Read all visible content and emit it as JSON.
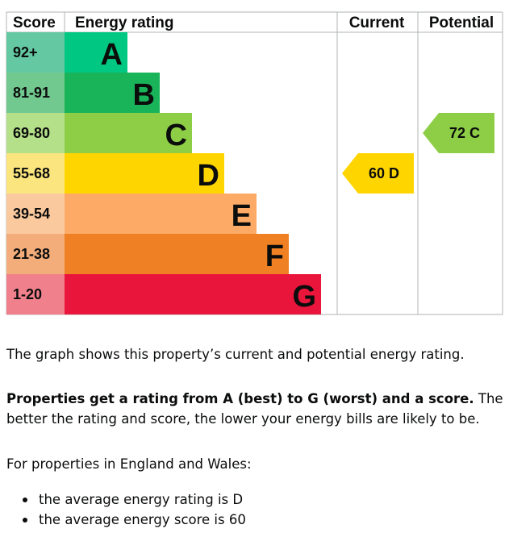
{
  "chart_data": {
    "type": "table",
    "headers": {
      "score": "Score",
      "rating": "Energy rating",
      "current": "Current",
      "potential": "Potential"
    },
    "bands": [
      {
        "letter": "A",
        "range": "92+",
        "color": "#00c781",
        "score_color": "#64c9a3"
      },
      {
        "letter": "B",
        "range": "81-91",
        "color": "#19b459",
        "score_color": "#72c98f"
      },
      {
        "letter": "C",
        "range": "69-80",
        "color": "#8dce46",
        "score_color": "#b4e08a"
      },
      {
        "letter": "D",
        "range": "55-68",
        "color": "#ffd500",
        "score_color": "#fbe57e"
      },
      {
        "letter": "E",
        "range": "39-54",
        "color": "#fcaa65",
        "score_color": "#fbc99e"
      },
      {
        "letter": "F",
        "range": "21-38",
        "color": "#ef8023",
        "score_color": "#f3ad7b"
      },
      {
        "letter": "G",
        "range": "1-20",
        "color": "#e9153b",
        "score_color": "#f0818c"
      }
    ],
    "current": {
      "score": 60,
      "letter": "D",
      "label": "60  D",
      "color": "#ffd500"
    },
    "potential": {
      "score": 72,
      "letter": "C",
      "label": "72  C",
      "color": "#8dce46"
    }
  },
  "text": {
    "intro": "The graph shows this property’s current and potential energy rating.",
    "bold": "Properties get a rating from A (best) to G (worst) and a score.",
    "rest": " The better the rating and score, the lower your energy bills are likely to be.",
    "england": "For properties in England and Wales:",
    "bullets": [
      "the average energy rating is D",
      "the average energy score is 60"
    ]
  }
}
